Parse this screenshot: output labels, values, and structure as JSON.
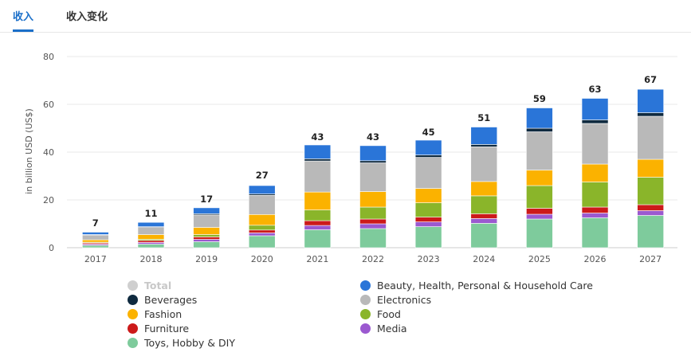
{
  "tabs": [
    {
      "label": "收入",
      "active": true
    },
    {
      "label": "收入变化",
      "active": false
    }
  ],
  "chart_data": {
    "type": "bar",
    "stacked": true,
    "title": "",
    "xlabel": "",
    "ylabel": "in billion USD (US$)",
    "ylim": [
      0,
      80
    ],
    "yticks": [
      0,
      20,
      40,
      60,
      80
    ],
    "grid": true,
    "legend_position": "bottom",
    "categories": [
      "2017",
      "2018",
      "2019",
      "2020",
      "2021",
      "2022",
      "2023",
      "2024",
      "2025",
      "2026",
      "2027"
    ],
    "totals": [
      7,
      11,
      17,
      27,
      43,
      43,
      45,
      51,
      59,
      63,
      67
    ],
    "series": [
      {
        "name": "Toys, Hobby & DIY",
        "color": "#7ecb9c",
        "values": [
          1.0,
          1.5,
          2.5,
          5.0,
          7.5,
          8.0,
          8.8,
          10.2,
          12.0,
          12.5,
          13.5
        ]
      },
      {
        "name": "Media",
        "color": "#9b59d0",
        "values": [
          0.5,
          0.7,
          1.0,
          1.2,
          1.8,
          2.0,
          2.0,
          2.0,
          2.0,
          2.0,
          2.0
        ]
      },
      {
        "name": "Furniture",
        "color": "#cc1a1a",
        "values": [
          0.5,
          0.8,
          1.0,
          1.2,
          2.0,
          2.0,
          2.0,
          2.0,
          2.5,
          2.5,
          2.5
        ]
      },
      {
        "name": "Food",
        "color": "#8ab52a",
        "values": [
          0.3,
          0.5,
          1.0,
          2.0,
          4.5,
          5.0,
          6.0,
          7.5,
          9.5,
          10.5,
          11.5
        ]
      },
      {
        "name": "Fashion",
        "color": "#fbb200",
        "values": [
          1.0,
          2.0,
          3.0,
          4.5,
          7.5,
          6.5,
          6.0,
          6.0,
          6.5,
          7.5,
          7.5
        ]
      },
      {
        "name": "Electronics",
        "color": "#b9b9b9",
        "values": [
          2.0,
          3.0,
          5.2,
          8.0,
          13.0,
          12.0,
          13.0,
          14.5,
          16.0,
          17.0,
          18.0
        ]
      },
      {
        "name": "Beverages",
        "color": "#0f2a3f",
        "values": [
          0.2,
          0.3,
          0.5,
          0.6,
          0.9,
          0.9,
          1.0,
          1.0,
          1.5,
          1.5,
          1.5
        ]
      },
      {
        "name": "Beauty, Health, Personal & Household Care",
        "color": "#2a75d8",
        "values": [
          1.0,
          1.8,
          2.5,
          3.5,
          5.8,
          6.3,
          6.2,
          7.3,
          8.5,
          9.0,
          9.8
        ]
      }
    ]
  },
  "legend": [
    {
      "label": "Total",
      "color": "#cfcfcf",
      "disabled": true
    },
    {
      "label": "Beauty, Health, Personal & Household Care",
      "color": "#2a75d8",
      "disabled": false
    },
    {
      "label": "Beverages",
      "color": "#0f2a3f",
      "disabled": false
    },
    {
      "label": "Electronics",
      "color": "#b9b9b9",
      "disabled": false
    },
    {
      "label": "Fashion",
      "color": "#fbb200",
      "disabled": false
    },
    {
      "label": "Food",
      "color": "#8ab52a",
      "disabled": false
    },
    {
      "label": "Furniture",
      "color": "#cc1a1a",
      "disabled": false
    },
    {
      "label": "Media",
      "color": "#9b59d0",
      "disabled": false
    },
    {
      "label": "Toys, Hobby & DIY",
      "color": "#7ecb9c",
      "disabled": false
    }
  ]
}
